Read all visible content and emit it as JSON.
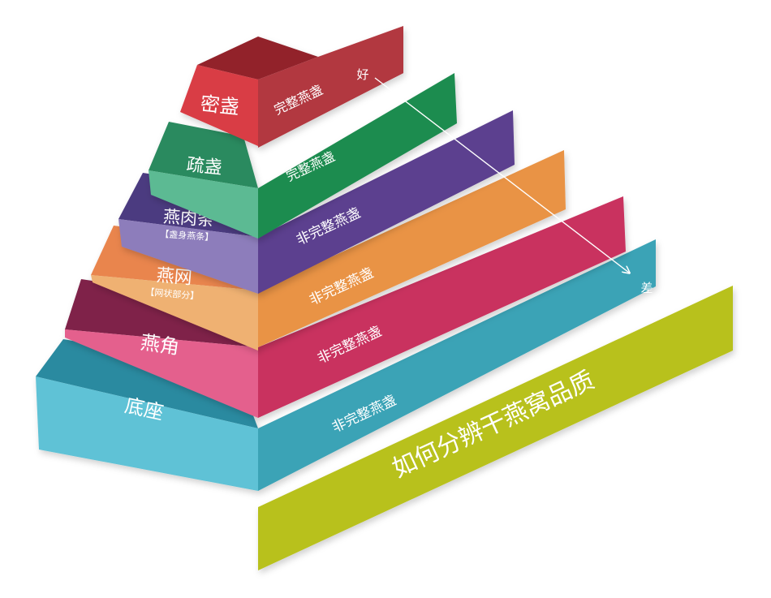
{
  "title": "如何分辨干燕窝品质",
  "scale": {
    "top": "好",
    "bottom": "差"
  },
  "levels": [
    {
      "name": "密盏",
      "sub": "",
      "ribbon": "完整燕盏",
      "colors": {
        "front": "#d93c45",
        "top": "#92222b",
        "ribbon": "#b2373f"
      }
    },
    {
      "name": "疏盏",
      "sub": "",
      "ribbon": "完整燕盏",
      "colors": {
        "front": "#5cba93",
        "top": "#2c8a5e",
        "ribbon": "#1f8c4f"
      }
    },
    {
      "name": "燕肉条",
      "sub": "【盏身燕条】",
      "ribbon": "非完整燕盏",
      "colors": {
        "front": "#8d7dbb",
        "top": "#4c3b80",
        "ribbon": "#5c3f8f"
      }
    },
    {
      "name": "燕网",
      "sub": "【网状部分】",
      "ribbon": "非完整燕盏",
      "colors": {
        "front": "#efb172",
        "top": "#e9854e",
        "ribbon": "#e99345"
      }
    },
    {
      "name": "燕角",
      "sub": "",
      "ribbon": "非完整燕盏",
      "colors": {
        "front": "#e4618d",
        "top": "#7f2148",
        "ribbon": "#c9325f"
      }
    },
    {
      "name": "底座",
      "sub": "",
      "ribbon": "非完整燕盏",
      "colors": {
        "front": "#5ec2d6",
        "top": "#2b8aa0",
        "ribbon": "#3aa3b6"
      }
    }
  ],
  "banner_color": "#b8c11a"
}
